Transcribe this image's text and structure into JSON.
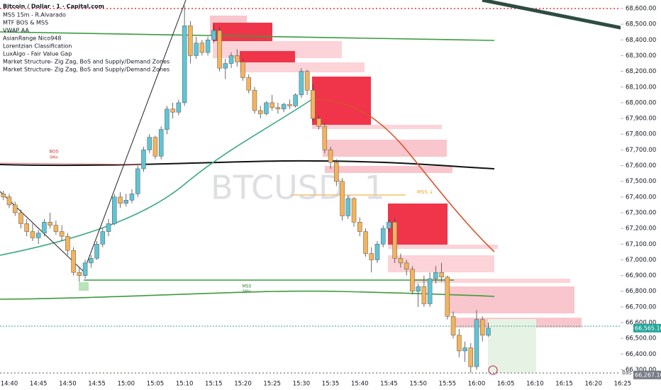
{
  "chart_data": {
    "type": "candlestick",
    "title": "Bitcoin / Dollar · 1 · Capital.com",
    "indicators": [
      "MSS 15m - R.Alvarado",
      "MTF BOS & MSS",
      "VWAP AA",
      "AsianRange Nico948",
      "Lorentzian Classification",
      "LuxAlgo - Fair Value Gap",
      "Market Structure- Zig Zag, BoS and Supply/Demand Zones",
      "Market Structure- Zig Zag, BoS and Supply/Demand Zones"
    ],
    "watermark": "BTCUSD, 1",
    "annotations": [
      "BOS",
      "5Min",
      "MSS",
      "5Min",
      "MSS ↓",
      "Bas"
    ],
    "up_color": "#5fc4d6",
    "down_color": "#f5b35a",
    "categories": [
      null,
      "14:40",
      null,
      null,
      null,
      null,
      "14:45",
      null,
      null,
      null,
      null,
      "14:50",
      null,
      null,
      null,
      null,
      "14:55",
      null,
      null,
      null,
      null,
      "15:00",
      null,
      null,
      null,
      null,
      "15:05",
      null,
      null,
      null,
      null,
      "15:10",
      null,
      null,
      null,
      null,
      "15:15",
      null,
      null,
      null,
      null,
      "15:20",
      null,
      null,
      null,
      null,
      "15:25",
      null,
      null,
      null,
      null,
      "15:30",
      null,
      null,
      null,
      null,
      "15:35",
      null,
      null,
      null,
      null,
      "15:40",
      null,
      null,
      null,
      null,
      "15:45",
      null,
      null,
      null,
      null,
      "15:50",
      null,
      null,
      null,
      null,
      "15:55",
      null,
      null,
      null,
      null,
      "16:00",
      null,
      null,
      null,
      null,
      "16:05",
      null,
      null,
      null,
      null,
      "16:10",
      null,
      null,
      null,
      null,
      "16:15",
      null,
      null,
      null,
      null,
      "16:20",
      null,
      null,
      null,
      null,
      "16:25"
    ],
    "ohlc": [
      [
        67420,
        67440,
        67380,
        67400
      ],
      [
        67400,
        67420,
        67330,
        67350
      ],
      [
        67350,
        67370,
        67280,
        67300
      ],
      [
        67300,
        67320,
        67200,
        67230
      ],
      [
        67230,
        67260,
        67150,
        67180
      ],
      [
        67180,
        67230,
        67120,
        67140
      ],
      [
        67140,
        67190,
        67100,
        67170
      ],
      [
        67170,
        67260,
        67150,
        67240
      ],
      [
        67240,
        67300,
        67200,
        67220
      ],
      [
        67220,
        67250,
        67160,
        67180
      ],
      [
        67180,
        67220,
        67120,
        67150
      ],
      [
        67150,
        67170,
        67030,
        67060
      ],
      [
        67060,
        67080,
        66900,
        66920
      ],
      [
        66920,
        66950,
        66860,
        66900
      ],
      [
        66900,
        67000,
        66880,
        66980
      ],
      [
        66980,
        67030,
        66950,
        67010
      ],
      [
        67010,
        67120,
        67000,
        67100
      ],
      [
        67100,
        67200,
        67080,
        67180
      ],
      [
        67180,
        67260,
        67150,
        67230
      ],
      [
        67230,
        67420,
        67220,
        67400
      ],
      [
        67400,
        67430,
        67330,
        67360
      ],
      [
        67360,
        67420,
        67340,
        67380
      ],
      [
        67380,
        67450,
        67360,
        67420
      ],
      [
        67420,
        67600,
        67400,
        67580
      ],
      [
        67580,
        67720,
        67560,
        67700
      ],
      [
        67700,
        67800,
        67680,
        67780
      ],
      [
        67780,
        67790,
        67640,
        67660
      ],
      [
        67660,
        67850,
        67640,
        67830
      ],
      [
        67830,
        67980,
        67800,
        67960
      ],
      [
        67960,
        68000,
        67900,
        67940
      ],
      [
        67940,
        68020,
        67920,
        68000
      ],
      [
        68000,
        68620,
        67980,
        68490
      ],
      [
        68490,
        68520,
        68250,
        68300
      ],
      [
        68300,
        68420,
        68280,
        68380
      ],
      [
        68380,
        68400,
        68300,
        68320
      ],
      [
        68320,
        68420,
        68300,
        68400
      ],
      [
        68400,
        68500,
        68380,
        68460
      ],
      [
        68460,
        68480,
        68200,
        68220
      ],
      [
        68220,
        68280,
        68150,
        68250
      ],
      [
        68250,
        68320,
        68220,
        68300
      ],
      [
        68300,
        68340,
        68230,
        68260
      ],
      [
        68260,
        68280,
        68140,
        68160
      ],
      [
        68160,
        68180,
        68060,
        68080
      ],
      [
        68080,
        68100,
        67930,
        67950
      ],
      [
        67950,
        67980,
        67900,
        67930
      ],
      [
        67930,
        68010,
        67920,
        68000
      ],
      [
        68000,
        68050,
        67950,
        67970
      ],
      [
        67970,
        68000,
        67930,
        67960
      ],
      [
        67960,
        68000,
        67940,
        67990
      ],
      [
        67990,
        68020,
        67960,
        67980
      ],
      [
        67980,
        68060,
        67970,
        68050
      ],
      [
        68050,
        68220,
        68030,
        68200
      ],
      [
        68200,
        68210,
        68050,
        68080
      ],
      [
        68080,
        68120,
        67880,
        67900
      ],
      [
        67900,
        67920,
        67830,
        67850
      ],
      [
        67850,
        67870,
        67680,
        67700
      ],
      [
        67700,
        67720,
        67580,
        67620
      ],
      [
        67620,
        67640,
        67470,
        67500
      ],
      [
        67500,
        67520,
        67250,
        67280
      ],
      [
        67280,
        67410,
        67260,
        67390
      ],
      [
        67390,
        67400,
        67210,
        67240
      ],
      [
        67240,
        67270,
        67150,
        67180
      ],
      [
        67180,
        67200,
        67020,
        67040
      ],
      [
        67040,
        67080,
        66920,
        67000
      ],
      [
        67000,
        67120,
        66980,
        67100
      ],
      [
        67100,
        67220,
        67080,
        67200
      ],
      [
        67200,
        67260,
        67180,
        67240
      ],
      [
        67240,
        67270,
        66980,
        67010
      ],
      [
        67010,
        67040,
        66950,
        66980
      ],
      [
        66980,
        67000,
        66900,
        66940
      ],
      [
        66940,
        66960,
        66780,
        66800
      ],
      [
        66800,
        66850,
        66700,
        66830
      ],
      [
        66830,
        66900,
        66700,
        66720
      ],
      [
        66720,
        66920,
        66700,
        66880
      ],
      [
        66880,
        66960,
        66850,
        66920
      ],
      [
        66920,
        66980,
        66860,
        66890
      ],
      [
        66890,
        66900,
        66620,
        66640
      ],
      [
        66640,
        66670,
        66500,
        66520
      ],
      [
        66520,
        66560,
        66380,
        66420
      ],
      [
        66420,
        66480,
        66350,
        66440
      ],
      [
        66440,
        66470,
        66280,
        66320
      ],
      [
        66320,
        66680,
        66300,
        66620
      ],
      [
        66620,
        66640,
        66480,
        66520
      ],
      [
        66520,
        66600,
        66510,
        66565.1
      ],
      null,
      null,
      null,
      null,
      null,
      null,
      null,
      null,
      null,
      null,
      null,
      null,
      null,
      null,
      null,
      null,
      null,
      null,
      null,
      null,
      null,
      null,
      null
    ],
    "ylim": [
      66250,
      68650
    ],
    "yticks": [
      {
        "value": 68600,
        "label": "68,600.00"
      },
      {
        "value": 68500,
        "label": "68,500.00"
      },
      {
        "value": 68400,
        "label": "68,400.00"
      },
      {
        "value": 68300,
        "label": "68,300.00"
      },
      {
        "value": 68200,
        "label": "68,200.00"
      },
      {
        "value": 68100,
        "label": "68,100.00"
      },
      {
        "value": 68000,
        "label": "68,000.00"
      },
      {
        "value": 67900,
        "label": "67,900.00"
      },
      {
        "value": 67800,
        "label": "67,800.00"
      },
      {
        "value": 67700,
        "label": "67,700.00"
      },
      {
        "value": 67600,
        "label": "67,600.00"
      },
      {
        "value": 67500,
        "label": "67,500.00"
      },
      {
        "value": 67400,
        "label": "67,400.00"
      },
      {
        "value": 67300,
        "label": "67,300.00"
      },
      {
        "value": 67200,
        "label": "67,200.00"
      },
      {
        "value": 67100,
        "label": "67,100.00"
      },
      {
        "value": 67000,
        "label": "67,000.00"
      },
      {
        "value": 66900,
        "label": "66,900.00"
      },
      {
        "value": 66800,
        "label": "66,800.00"
      },
      {
        "value": 66700,
        "label": "66,700.00"
      },
      {
        "value": 66600,
        "label": "66,600.00"
      },
      {
        "value": 66500,
        "label": "66,500.00"
      },
      {
        "value": 66400,
        "label": "66,400.00"
      },
      {
        "value": 66300,
        "label": "66,300.00"
      }
    ],
    "price_tags": [
      {
        "value": 66565.1,
        "label": "66,565.10",
        "color": "#26a69a"
      },
      {
        "value": 66267.1,
        "label": "66,267.10",
        "color": "#787b86"
      }
    ]
  }
}
